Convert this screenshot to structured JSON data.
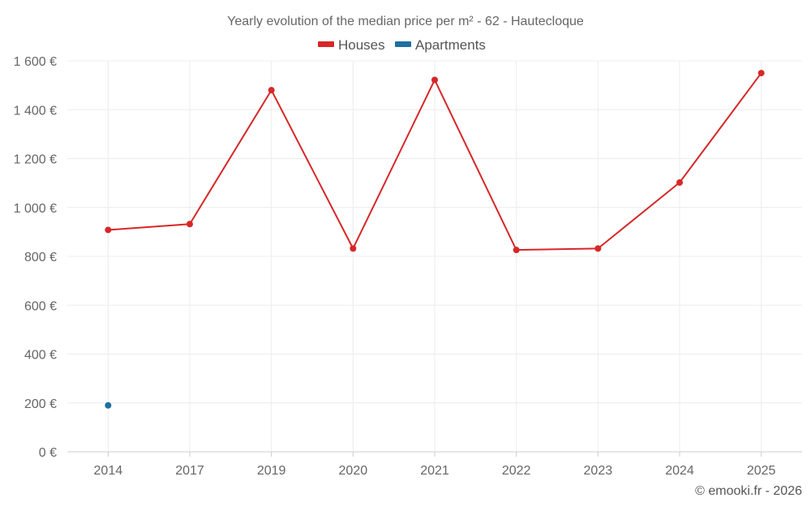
{
  "chart_data": {
    "type": "line",
    "title": "Yearly evolution of the median price per m² - 62 - Hautecloque",
    "categories": [
      "2014",
      "2017",
      "2019",
      "2020",
      "2021",
      "2022",
      "2023",
      "2024",
      "2025"
    ],
    "series": [
      {
        "name": "Houses",
        "color": "#d62728",
        "values": [
          908,
          932,
          1480,
          832,
          1522,
          826,
          832,
          1102,
          1550
        ]
      },
      {
        "name": "Apartments",
        "color": "#1f6fa0",
        "values": [
          190,
          null,
          null,
          null,
          null,
          null,
          null,
          null,
          null
        ]
      }
    ],
    "yticks": [
      0,
      200,
      400,
      600,
      800,
      1000,
      1200,
      1400,
      1600
    ],
    "ytick_labels": [
      "0 €",
      "200 €",
      "400 €",
      "600 €",
      "800 €",
      "1 000 €",
      "1 200 €",
      "1 400 €",
      "1 600 €"
    ],
    "ylim": [
      0,
      1600
    ],
    "grid": true,
    "legend_position": "top-center"
  },
  "credit": "© emooki.fr - 2026"
}
